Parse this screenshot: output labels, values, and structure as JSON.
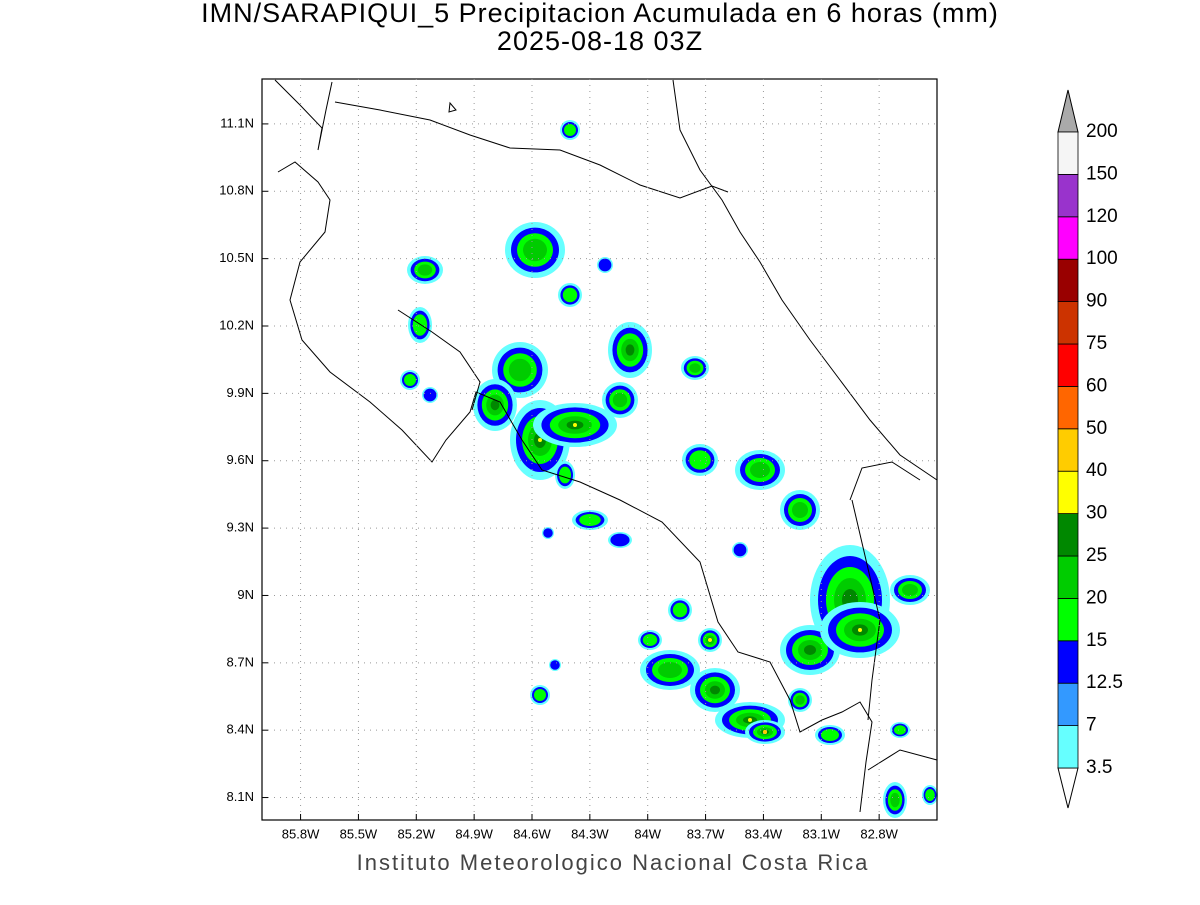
{
  "map": {
    "title": "IMN/SARAPIQUI_5 Precipitacion Acumulada en 6 horas (mm)",
    "subtitle": "2025-08-18 03Z",
    "footer": "Instituto Meteorologico Nacional Costa Rica",
    "xlim": [
      -86.0,
      -82.5
    ],
    "ylim": [
      8.0,
      11.3
    ],
    "xticks": [
      {
        "value": -85.8,
        "label": "85.8W"
      },
      {
        "value": -85.5,
        "label": "85.5W"
      },
      {
        "value": -85.2,
        "label": "85.2W"
      },
      {
        "value": -84.9,
        "label": "84.9W"
      },
      {
        "value": -84.6,
        "label": "84.6W"
      },
      {
        "value": -84.3,
        "label": "84.3W"
      },
      {
        "value": -84.0,
        "label": "84W"
      },
      {
        "value": -83.7,
        "label": "83.7W"
      },
      {
        "value": -83.4,
        "label": "83.4W"
      },
      {
        "value": -83.1,
        "label": "83.1W"
      },
      {
        "value": -82.8,
        "label": "82.8W"
      }
    ],
    "yticks": [
      {
        "value": 8.1,
        "label": "8.1N"
      },
      {
        "value": 8.4,
        "label": "8.4N"
      },
      {
        "value": 8.7,
        "label": "8.7N"
      },
      {
        "value": 9.0,
        "label": "9N"
      },
      {
        "value": 9.3,
        "label": "9.3N"
      },
      {
        "value": 9.6,
        "label": "9.6N"
      },
      {
        "value": 9.9,
        "label": "9.9N"
      },
      {
        "value": 10.2,
        "label": "10.2N"
      },
      {
        "value": 10.5,
        "label": "10.5N"
      },
      {
        "value": 10.8,
        "label": "10.8N"
      },
      {
        "value": 11.1,
        "label": "11.1N"
      }
    ],
    "grid": true,
    "colorbar": {
      "levels": [
        3.5,
        7,
        12.5,
        15,
        20,
        25,
        30,
        40,
        50,
        60,
        75,
        90,
        100,
        120,
        150,
        200
      ],
      "colors": [
        "#ffffff",
        "#66ffff",
        "#3399ff",
        "#0000ff",
        "#00ff00",
        "#00cc00",
        "#008800",
        "#ffff00",
        "#ffcc00",
        "#ff6600",
        "#ff0000",
        "#cc3300",
        "#990000",
        "#ff00ff",
        "#9933cc",
        "#f5f5f5",
        "#aaaaaa"
      ]
    }
  }
}
